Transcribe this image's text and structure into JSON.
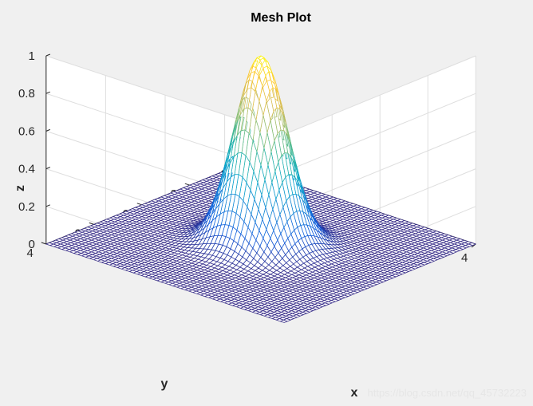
{
  "watermark": "https://blog.csdn.net/qq_45732223",
  "chart_data": {
    "type": "surface",
    "title": "Mesh Plot",
    "xlabel": "x",
    "ylabel": "y",
    "zlabel": "z",
    "xlim": [
      -4,
      4
    ],
    "ylim": [
      -4,
      4
    ],
    "zlim": [
      0,
      1
    ],
    "xticks": [
      "-4",
      "-2",
      "0",
      "2",
      "4"
    ],
    "yticks": [
      "-4",
      "-2",
      "0",
      "2",
      "4"
    ],
    "zticks": [
      "0",
      "0.2",
      "0.4",
      "0.6",
      "0.8",
      "1"
    ],
    "function": "z = exp(-(x^2 + y^2))",
    "grid": 61,
    "colormap": "parula",
    "colormap_stops": [
      "#352a87",
      "#0f5cdd",
      "#1481d6",
      "#06a4ca",
      "#2eb7a4",
      "#87bf77",
      "#d1bb59",
      "#fec832",
      "#f9fb0e"
    ],
    "peak": {
      "x": 0,
      "y": 0,
      "z": 1
    },
    "grid_on": true,
    "background": "#f0f0f0",
    "axes_color": "#ffffff"
  }
}
